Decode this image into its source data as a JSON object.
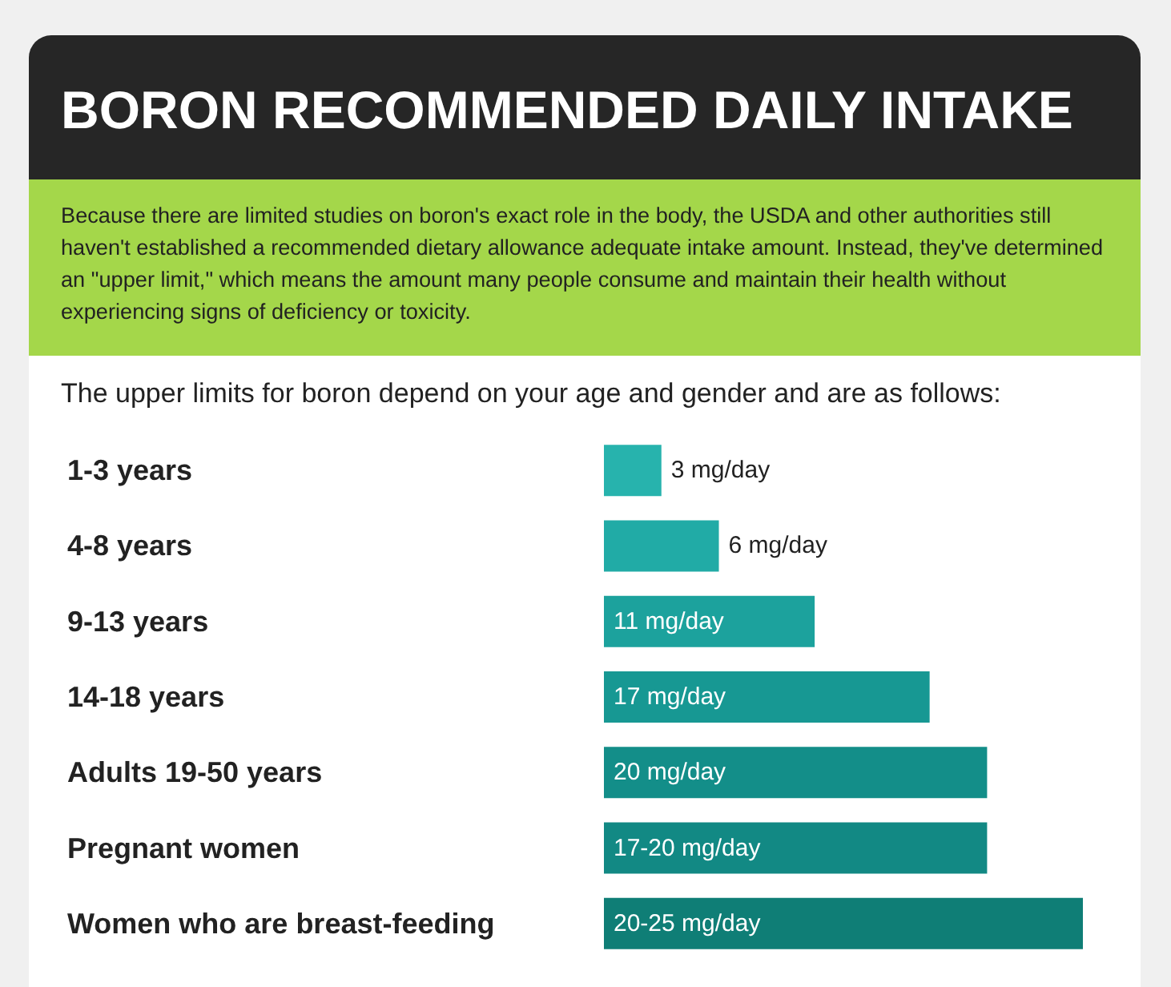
{
  "chart_data": {
    "type": "bar",
    "orientation": "horizontal",
    "title": "BORON RECOMMENDED DAILY INTAKE",
    "subtitle": "Because there are limited studies on boron's exact role in the body, the USDA and other authorities still haven't established a recommended dietary allowance adequate intake amount. Instead, they've determined an \"upper limit,\" which means the amount many people consume and maintain their health without experiencing signs of deficiency or toxicity.",
    "annotations": [
      "The upper limits for boron depend on your age and gender and are as follows:"
    ],
    "categories": [
      "1-3 years",
      "4-8 years",
      "9-13 years",
      "14-18 years",
      "Adults 19-50 years",
      "Pregnant women",
      "Women who are breast-feeding"
    ],
    "values": [
      3,
      6,
      11,
      17,
      20,
      20,
      25
    ],
    "value_labels": [
      "3 mg/day",
      "6 mg/day",
      "11 mg/day",
      "17 mg/day",
      "20 mg/day",
      "17-20 mg/day",
      "20-25 mg/day"
    ],
    "colors": [
      "#27b3ad",
      "#21aba6",
      "#1ca29d",
      "#179893",
      "#138e89",
      "#128984",
      "#0f7e76"
    ]
  }
}
